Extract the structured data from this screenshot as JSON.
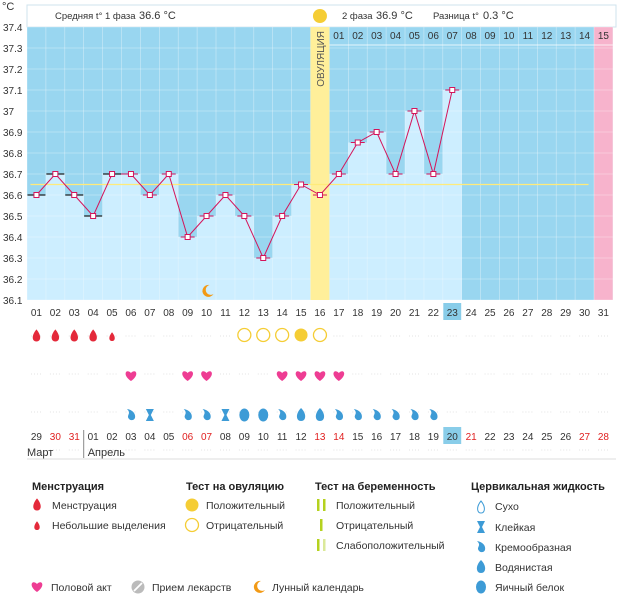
{
  "chart_data": {
    "type": "line",
    "unit_label": "°C",
    "ylim": [
      36.1,
      37.4
    ],
    "y_ticks": [
      "37.4",
      "37.3",
      "37.2",
      "37.1",
      "37",
      "36.9",
      "36.8",
      "36.7",
      "36.6",
      "36.5",
      "36.4",
      "36.3",
      "36.2",
      "36.1"
    ],
    "cycle_days": [
      "01",
      "02",
      "03",
      "04",
      "05",
      "06",
      "07",
      "08",
      "09",
      "10",
      "11",
      "12",
      "13",
      "14",
      "15",
      "16",
      "17",
      "18",
      "19",
      "20",
      "21",
      "22",
      "23",
      "24",
      "25",
      "26",
      "27",
      "28",
      "29",
      "30",
      "31"
    ],
    "temperatures": [
      36.6,
      36.7,
      36.6,
      36.5,
      36.7,
      36.7,
      36.6,
      36.7,
      36.4,
      36.5,
      36.6,
      36.5,
      36.3,
      36.5,
      36.65,
      36.6,
      36.7,
      36.85,
      36.9,
      36.7,
      37.0,
      36.7,
      37.1,
      null,
      null,
      null,
      null,
      null,
      null,
      null,
      null
    ],
    "coverline": 36.65,
    "ovulation_day": 16,
    "ovulation_label": "ОВУЛЯЦИЯ",
    "highlight_day": "23",
    "phase1_label": "Средняя t° 1 фаза",
    "phase1_value": "36.6 °C",
    "phase2_label": "2 фаза",
    "phase2_value": "36.9 °C",
    "diff_label": "Разница t°",
    "diff_value": "0.3 °C",
    "post_days": [
      "01",
      "02",
      "03",
      "04",
      "05",
      "06",
      "07",
      "08",
      "09",
      "10",
      "11",
      "12",
      "13",
      "14",
      "15"
    ],
    "dates": [
      {
        "d": "29",
        "red": false
      },
      {
        "d": "30",
        "red": true
      },
      {
        "d": "31",
        "red": true
      },
      {
        "d": "01",
        "red": false
      },
      {
        "d": "02",
        "red": false
      },
      {
        "d": "03",
        "red": false
      },
      {
        "d": "04",
        "red": false
      },
      {
        "d": "05",
        "red": false
      },
      {
        "d": "06",
        "red": true
      },
      {
        "d": "07",
        "red": true
      },
      {
        "d": "08",
        "red": false
      },
      {
        "d": "09",
        "red": false
      },
      {
        "d": "10",
        "red": false
      },
      {
        "d": "11",
        "red": false
      },
      {
        "d": "12",
        "red": false
      },
      {
        "d": "13",
        "red": true
      },
      {
        "d": "14",
        "red": true
      },
      {
        "d": "15",
        "red": false
      },
      {
        "d": "16",
        "red": false
      },
      {
        "d": "17",
        "red": false
      },
      {
        "d": "18",
        "red": false
      },
      {
        "d": "19",
        "red": false
      },
      {
        "d": "20",
        "red": false
      },
      {
        "d": "21",
        "red": true
      },
      {
        "d": "22",
        "red": false
      },
      {
        "d": "23",
        "red": false
      },
      {
        "d": "24",
        "red": false
      },
      {
        "d": "25",
        "red": false
      },
      {
        "d": "26",
        "red": false
      },
      {
        "d": "27",
        "red": true
      },
      {
        "d": "28",
        "red": true
      }
    ],
    "highlight_date": "20",
    "months": [
      "Март",
      "Апрель"
    ],
    "moon_day": 10,
    "menstruation": [
      {
        "day": 1,
        "kind": "heavy"
      },
      {
        "day": 2,
        "kind": "heavy"
      },
      {
        "day": 3,
        "kind": "heavy"
      },
      {
        "day": 4,
        "kind": "heavy"
      },
      {
        "day": 5,
        "kind": "light"
      }
    ],
    "ovulation_tests": [
      {
        "day": 12,
        "kind": "negative"
      },
      {
        "day": 13,
        "kind": "negative"
      },
      {
        "day": 14,
        "kind": "negative"
      },
      {
        "day": 15,
        "kind": "positive"
      },
      {
        "day": 16,
        "kind": "negative"
      }
    ],
    "intercourse_days": [
      6,
      9,
      10,
      14,
      15,
      16,
      17
    ],
    "cervical_fluid": [
      {
        "day": 6,
        "kind": "creamy"
      },
      {
        "day": 7,
        "kind": "sticky"
      },
      {
        "day": 9,
        "kind": "creamy"
      },
      {
        "day": 10,
        "kind": "creamy"
      },
      {
        "day": 11,
        "kind": "sticky"
      },
      {
        "day": 12,
        "kind": "eggwhite"
      },
      {
        "day": 13,
        "kind": "eggwhite"
      },
      {
        "day": 14,
        "kind": "creamy"
      },
      {
        "day": 15,
        "kind": "watery"
      },
      {
        "day": 16,
        "kind": "watery"
      },
      {
        "day": 17,
        "kind": "creamy"
      },
      {
        "day": 18,
        "kind": "creamy"
      },
      {
        "day": 19,
        "kind": "creamy"
      },
      {
        "day": 20,
        "kind": "creamy"
      },
      {
        "day": 21,
        "kind": "creamy"
      },
      {
        "day": 22,
        "kind": "creamy"
      }
    ],
    "colors": {
      "plot_bg": "#99d6f0",
      "bar_fill": "#cdeeff",
      "line": "#d4145a",
      "ovulation": "#ffef9a",
      "late_zone": "#f7b3cc",
      "blood": "#e4293a",
      "sun": "#f5cd35",
      "heart": "#ee3d93",
      "fluid": "#3d9bd6",
      "moon": "#f29a15"
    }
  },
  "legend": {
    "menstruation": {
      "title": "Менструация",
      "items": [
        "Менструация",
        "Небольшие выделения"
      ]
    },
    "ovulation_test": {
      "title": "Тест на овуляцию",
      "items": [
        "Положительный",
        "Отрицательный"
      ]
    },
    "pregnancy_test": {
      "title": "Тест на беременность",
      "items": [
        "Положительный",
        "Отрицательный",
        "Слабоположительный"
      ]
    },
    "cervical_fluid": {
      "title": "Цервикальная жидкость",
      "items": [
        "Сухо",
        "Клейкая",
        "Кремообразная",
        "Водянистая",
        "Яичный белок"
      ]
    },
    "bottom": [
      "Половой акт",
      "Прием лекарств",
      "Лунный календарь"
    ]
  }
}
